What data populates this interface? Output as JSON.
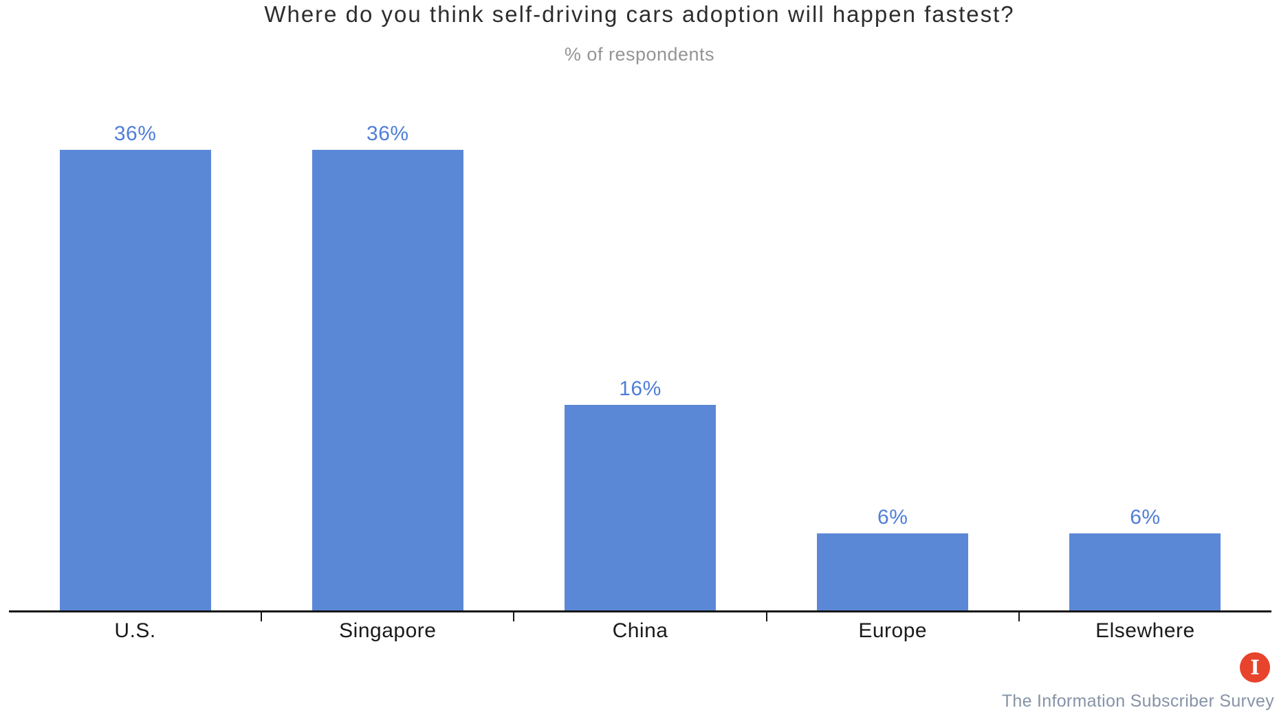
{
  "chart_data": {
    "type": "bar",
    "title": "Where do you think self-driving cars adoption will happen fastest?",
    "subtitle": "% of respondents",
    "categories": [
      "U.S.",
      "Singapore",
      "China",
      "Europe",
      "Elsewhere"
    ],
    "values": [
      36,
      36,
      16,
      6,
      6
    ],
    "value_labels": [
      "36%",
      "36%",
      "16%",
      "6%",
      "6%"
    ],
    "xlabel": "",
    "ylabel": "",
    "ylim": [
      0,
      38
    ],
    "grid": false,
    "legend": false,
    "bar_color": "#5b88d6",
    "value_label_color": "#4f7ed8",
    "axis_color": "#161616"
  },
  "footer": {
    "source": "The Information Subscriber Survey",
    "logo_letter": "I",
    "logo_color": "#e8432c"
  }
}
